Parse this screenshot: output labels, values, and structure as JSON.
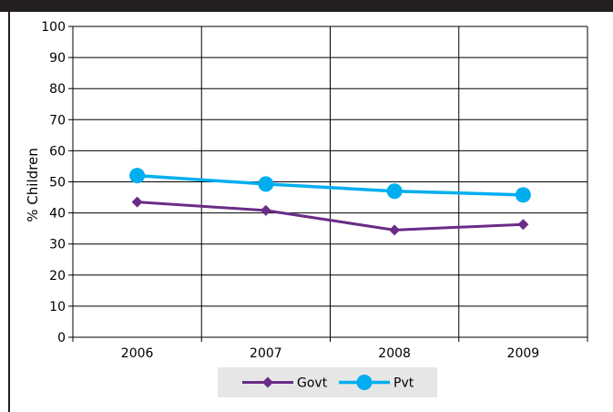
{
  "chart_data": {
    "type": "line",
    "categories": [
      "2006",
      "2007",
      "2008",
      "2009"
    ],
    "series": [
      {
        "name": "Govt",
        "values": [
          43.5,
          40.8,
          34.5,
          36.3
        ],
        "color": "#6a2c86",
        "marker": "diamond"
      },
      {
        "name": "Pvt",
        "values": [
          52.0,
          49.3,
          47.0,
          45.8
        ],
        "color": "#00aeef",
        "marker": "circle"
      }
    ],
    "title": "",
    "xlabel": "",
    "ylabel": "% Children",
    "ylim": [
      0,
      100
    ],
    "yticks": [
      "0",
      "10",
      "20",
      "30",
      "40",
      "50",
      "60",
      "70",
      "80",
      "90",
      "100"
    ],
    "grid": true,
    "legend_position": "bottom"
  },
  "colors": {
    "frame": "#231f20",
    "grid": "#000000",
    "legend_background": "#e6e6e6"
  }
}
